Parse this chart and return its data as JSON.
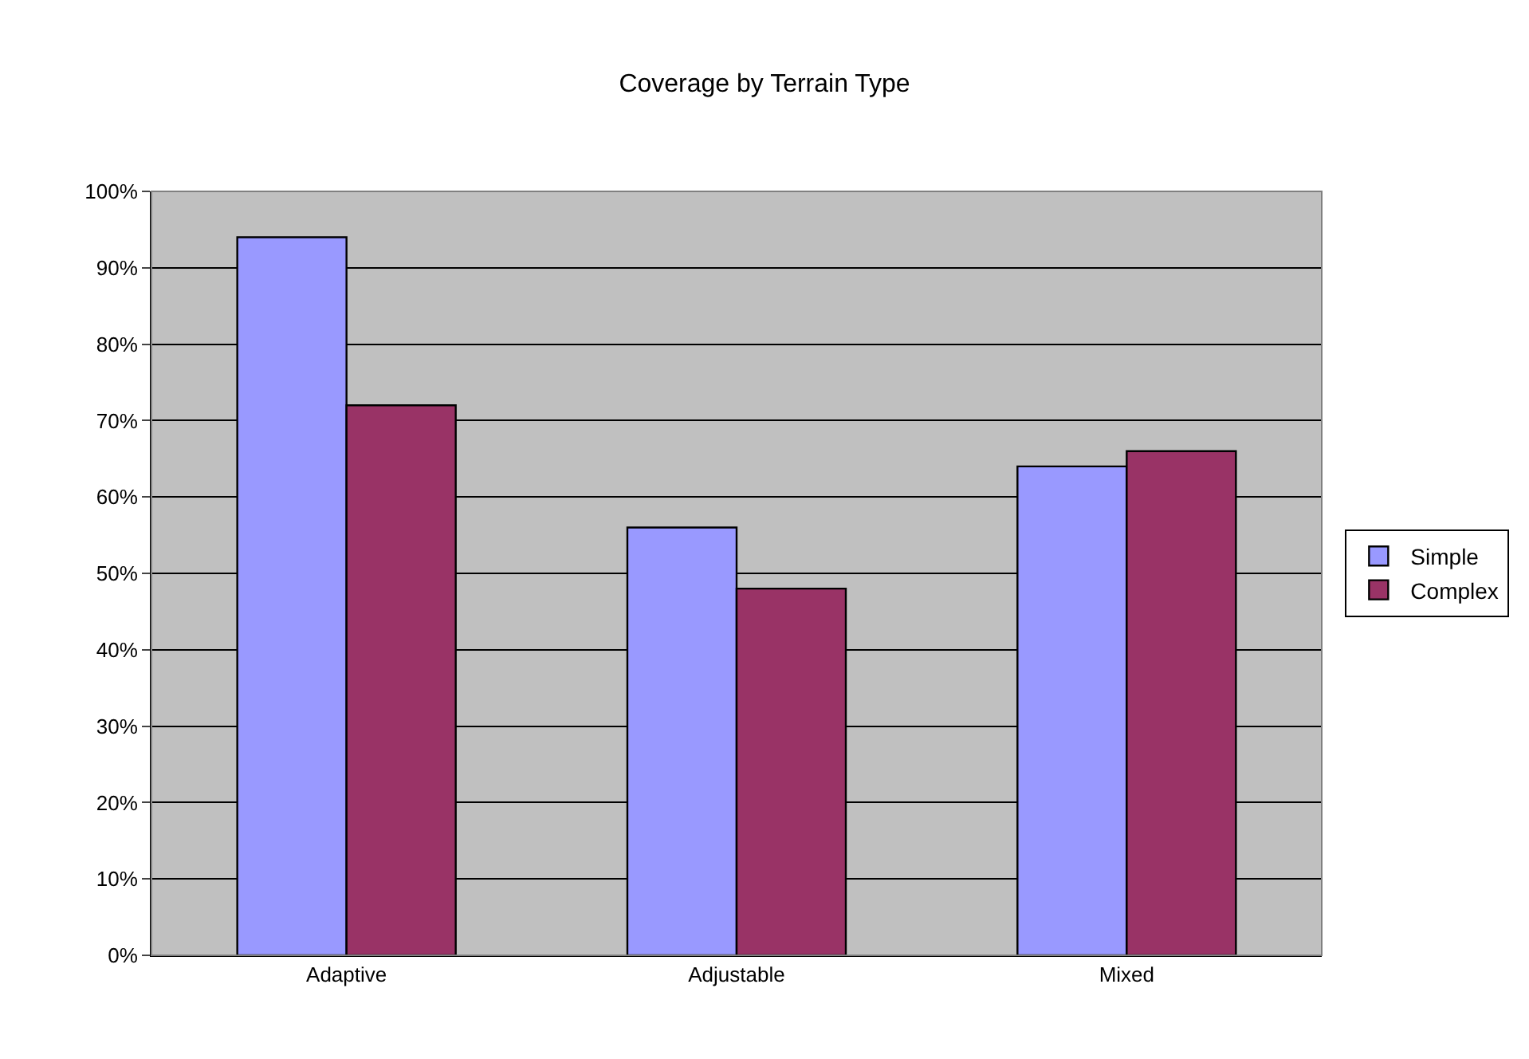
{
  "chart_data": {
    "type": "bar",
    "title": "Coverage by Terrain Type",
    "categories": [
      "Adaptive",
      "Adjustable",
      "Mixed"
    ],
    "series": [
      {
        "name": "Simple",
        "color": "#9999ff",
        "values": [
          94,
          56,
          64
        ]
      },
      {
        "name": "Complex",
        "color": "#993366",
        "values": [
          72,
          48,
          66
        ]
      }
    ],
    "ylim": [
      0,
      100
    ],
    "yticks": [
      {
        "value": 0,
        "label": "0%"
      },
      {
        "value": 10,
        "label": "10%"
      },
      {
        "value": 20,
        "label": "20%"
      },
      {
        "value": 30,
        "label": "30%"
      },
      {
        "value": 40,
        "label": "40%"
      },
      {
        "value": 50,
        "label": "50%"
      },
      {
        "value": 60,
        "label": "60%"
      },
      {
        "value": 70,
        "label": "70%"
      },
      {
        "value": 80,
        "label": "80%"
      },
      {
        "value": 90,
        "label": "90%"
      },
      {
        "value": 100,
        "label": "100%"
      }
    ],
    "grid": "y",
    "legend": "right"
  }
}
